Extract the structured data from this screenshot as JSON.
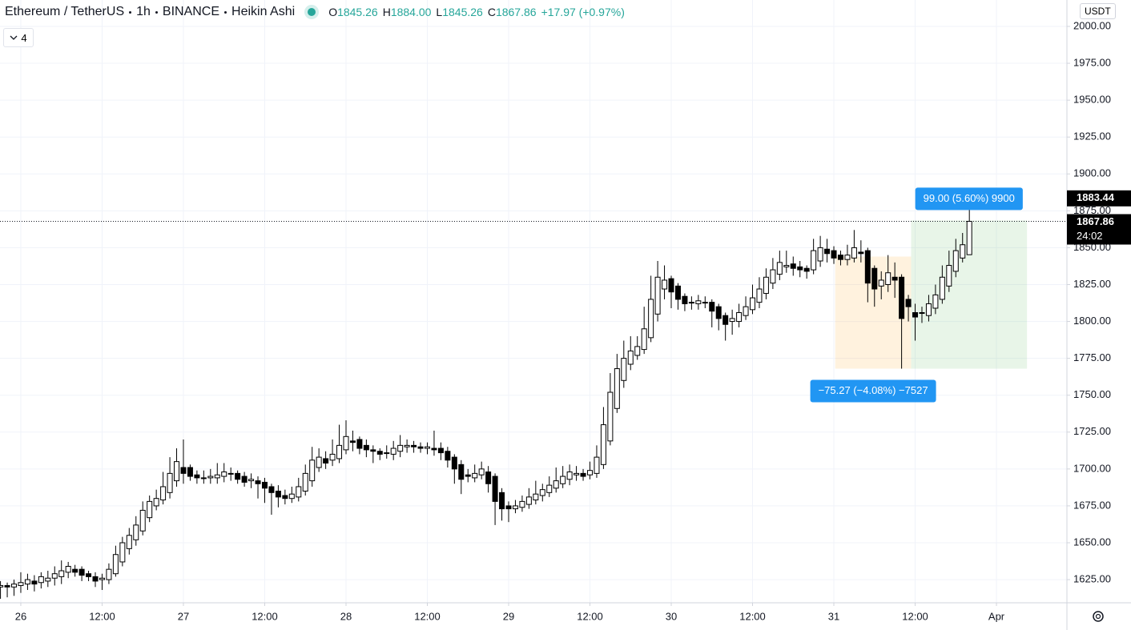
{
  "header": {
    "symbol": "Ethereum / TetherUS",
    "interval": "1h",
    "exchange": "BINANCE",
    "style": "Heikin Ashi",
    "ohlc": [
      {
        "label": "O",
        "value": "1845.26"
      },
      {
        "label": "H",
        "value": "1884.00"
      },
      {
        "label": "L",
        "value": "1845.26"
      },
      {
        "label": "C",
        "value": "1867.86"
      }
    ],
    "change": "+17.97 (+0.97%)",
    "indicators": "4"
  },
  "chart_data": {
    "type": "candlestick",
    "x": [
      -3,
      -2,
      -1,
      0,
      1,
      2,
      3,
      4,
      5,
      6,
      7,
      8,
      9,
      10,
      11,
      12,
      13,
      14,
      15,
      16,
      17,
      18,
      19,
      20,
      21,
      22,
      23,
      24,
      25,
      26,
      27,
      28,
      29,
      30,
      31,
      32,
      33,
      34,
      35,
      36,
      37,
      38,
      39,
      40,
      41,
      42,
      43,
      44,
      45,
      46,
      47,
      48,
      49,
      50,
      51,
      52,
      53,
      54,
      55,
      56,
      57,
      58,
      59,
      60,
      61,
      62,
      63,
      64,
      65,
      66,
      67,
      68,
      69,
      70,
      71,
      72,
      73,
      74,
      75,
      76,
      77,
      78,
      79,
      80,
      81,
      82,
      83,
      84,
      85,
      86,
      87,
      88,
      89,
      90,
      91,
      92,
      93,
      94,
      95,
      96,
      97,
      98,
      99,
      100,
      101,
      102,
      103,
      104,
      105,
      106,
      107,
      108,
      109,
      110,
      111,
      112,
      113,
      114,
      115,
      116,
      117,
      118,
      119,
      120,
      121,
      122,
      123,
      124,
      125,
      126,
      127,
      128,
      129,
      130,
      131,
      132,
      133,
      134,
      135,
      136,
      137,
      138,
      139,
      140
    ],
    "open": [
      1620,
      1621,
      1620,
      1621,
      1622,
      1624,
      1623,
      1624,
      1626,
      1627,
      1630,
      1632,
      1632,
      1629,
      1627,
      1625,
      1625,
      1629,
      1637,
      1646,
      1652,
      1658,
      1667,
      1675,
      1679,
      1684,
      1692,
      1701,
      1701,
      1696,
      1694,
      1694,
      1694,
      1695,
      1697,
      1697,
      1695,
      1692,
      1692,
      1691,
      1688,
      1685,
      1682,
      1680,
      1681,
      1685,
      1692,
      1701,
      1707,
      1706,
      1707,
      1713,
      1719,
      1720,
      1716,
      1713,
      1712,
      1711,
      1710,
      1712,
      1715,
      1716,
      1715,
      1714,
      1714,
      1714,
      1712,
      1708,
      1703,
      1696,
      1694,
      1696,
      1698,
      1695,
      1684,
      1675,
      1673,
      1674,
      1676,
      1679,
      1682,
      1684,
      1687,
      1690,
      1693,
      1696,
      1697,
      1696,
      1697,
      1703,
      1719,
      1741,
      1760,
      1771,
      1777,
      1781,
      1789,
      1805,
      1822,
      1829,
      1824,
      1817,
      1813,
      1812,
      1813,
      1813,
      1810,
      1804,
      1800,
      1800,
      1804,
      1808,
      1813,
      1819,
      1826,
      1832,
      1837,
      1839,
      1837,
      1836,
      1835,
      1841,
      1849,
      1848,
      1845,
      1842,
      1843,
      1847,
      1848,
      1836,
      1824,
      1825,
      1830,
      1830,
      1815,
      1806,
      1806,
      1804,
      1809,
      1815,
      1824,
      1834,
      1843,
      1845.26
    ],
    "high": [
      1624,
      1623,
      1625,
      1630,
      1629,
      1628,
      1630,
      1631,
      1634,
      1638,
      1637,
      1635,
      1634,
      1631,
      1630,
      1629,
      1636,
      1648,
      1654,
      1660,
      1668,
      1678,
      1682,
      1686,
      1698,
      1708,
      1714,
      1720,
      1703,
      1699,
      1699,
      1700,
      1704,
      1704,
      1701,
      1699,
      1698,
      1697,
      1695,
      1694,
      1690,
      1689,
      1686,
      1688,
      1694,
      1703,
      1715,
      1714,
      1712,
      1720,
      1730,
      1733,
      1726,
      1722,
      1720,
      1716,
      1714,
      1716,
      1719,
      1723,
      1720,
      1719,
      1718,
      1718,
      1726,
      1718,
      1715,
      1710,
      1706,
      1700,
      1703,
      1705,
      1702,
      1697,
      1687,
      1678,
      1679,
      1682,
      1687,
      1692,
      1690,
      1695,
      1701,
      1702,
      1703,
      1702,
      1700,
      1705,
      1716,
      1742,
      1765,
      1778,
      1787,
      1790,
      1790,
      1810,
      1831,
      1841,
      1838,
      1831,
      1826,
      1819,
      1817,
      1818,
      1817,
      1815,
      1812,
      1806,
      1808,
      1812,
      1817,
      1825,
      1830,
      1836,
      1843,
      1848,
      1848,
      1844,
      1841,
      1838,
      1856,
      1858,
      1856,
      1851,
      1848,
      1852,
      1862,
      1855,
      1850,
      1838,
      1834,
      1845,
      1840,
      1832,
      1818,
      1812,
      1810,
      1818,
      1825,
      1838,
      1848,
      1856,
      1860,
      1884
    ],
    "low": [
      1612,
      1613,
      1614,
      1616,
      1618,
      1617,
      1619,
      1620,
      1621,
      1622,
      1626,
      1627,
      1624,
      1624,
      1620,
      1618,
      1622,
      1627,
      1634,
      1642,
      1648,
      1655,
      1664,
      1672,
      1676,
      1680,
      1688,
      1690,
      1692,
      1690,
      1690,
      1690,
      1690,
      1691,
      1692,
      1690,
      1688,
      1687,
      1680,
      1677,
      1669,
      1674,
      1676,
      1677,
      1678,
      1682,
      1688,
      1698,
      1700,
      1702,
      1704,
      1710,
      1712,
      1710,
      1708,
      1704,
      1706,
      1707,
      1706,
      1708,
      1711,
      1711,
      1711,
      1710,
      1709,
      1706,
      1701,
      1690,
      1683,
      1691,
      1691,
      1693,
      1684,
      1662,
      1665,
      1664,
      1670,
      1671,
      1673,
      1676,
      1678,
      1681,
      1684,
      1687,
      1689,
      1692,
      1692,
      1693,
      1694,
      1700,
      1716,
      1738,
      1755,
      1767,
      1774,
      1778,
      1786,
      1800,
      1815,
      1809,
      1808,
      1807,
      1808,
      1808,
      1809,
      1796,
      1794,
      1787,
      1791,
      1796,
      1801,
      1805,
      1809,
      1815,
      1822,
      1828,
      1833,
      1831,
      1830,
      1829,
      1832,
      1837,
      1840,
      1839,
      1838,
      1838,
      1840,
      1840,
      1813,
      1810,
      1815,
      1820,
      1816,
      1768,
      1800,
      1787,
      1799,
      1800,
      1805,
      1812,
      1820,
      1830,
      1840,
      1845.26
    ],
    "close": [
      1621,
      1620,
      1622,
      1623,
      1625,
      1622,
      1627,
      1626,
      1629,
      1631,
      1634,
      1630,
      1628,
      1627,
      1624,
      1626,
      1632,
      1642,
      1650,
      1655,
      1662,
      1672,
      1678,
      1680,
      1688,
      1697,
      1705,
      1697,
      1695,
      1694,
      1694,
      1695,
      1696,
      1698,
      1697,
      1693,
      1691,
      1693,
      1690,
      1687,
      1684,
      1681,
      1680,
      1683,
      1688,
      1697,
      1706,
      1708,
      1704,
      1710,
      1716,
      1722,
      1718,
      1714,
      1713,
      1712,
      1710,
      1711,
      1714,
      1716,
      1716,
      1715,
      1714,
      1715,
      1713,
      1711,
      1706,
      1700,
      1693,
      1695,
      1697,
      1700,
      1690,
      1678,
      1673,
      1673,
      1675,
      1678,
      1681,
      1683,
      1686,
      1689,
      1692,
      1695,
      1698,
      1697,
      1695,
      1699,
      1708,
      1730,
      1752,
      1768,
      1775,
      1780,
      1783,
      1795,
      1815,
      1830,
      1828,
      1820,
      1815,
      1812,
      1813,
      1814,
      1813,
      1807,
      1802,
      1798,
      1802,
      1806,
      1810,
      1816,
      1822,
      1830,
      1835,
      1840,
      1838,
      1836,
      1835,
      1834,
      1848,
      1850,
      1846,
      1843,
      1842,
      1845,
      1850,
      1846,
      1826,
      1822,
      1828,
      1833,
      1828,
      1802,
      1810,
      1803,
      1806,
      1812,
      1818,
      1830,
      1838,
      1848,
      1852,
      1867.86
    ],
    "up_color": "#ffffff",
    "down_color": "#000000",
    "xlim": [
      -3.07,
      154.4
    ],
    "xticks": [
      {
        "value": 0,
        "label": "26"
      },
      {
        "value": 12,
        "label": "12:00"
      },
      {
        "value": 24,
        "label": "27"
      },
      {
        "value": 36,
        "label": "12:00"
      },
      {
        "value": 48,
        "label": "28"
      },
      {
        "value": 60,
        "label": "12:00"
      },
      {
        "value": 72,
        "label": "29"
      },
      {
        "value": 84,
        "label": "12:00"
      },
      {
        "value": 96,
        "label": "30"
      },
      {
        "value": 108,
        "label": "12:00"
      },
      {
        "value": 120,
        "label": "31"
      },
      {
        "value": 132,
        "label": "12:00"
      },
      {
        "value": 144,
        "label": "Apr"
      }
    ],
    "ylim": [
      1609.3,
      2017.9
    ],
    "yticks": [
      {
        "value": 1625,
        "label": "1625.00"
      },
      {
        "value": 1650,
        "label": "1650.00"
      },
      {
        "value": 1675,
        "label": "1675.00"
      },
      {
        "value": 1700,
        "label": "1700.00"
      },
      {
        "value": 1725,
        "label": "1725.00"
      },
      {
        "value": 1750,
        "label": "1750.00"
      },
      {
        "value": 1775,
        "label": "1775.00"
      },
      {
        "value": 1800,
        "label": "1800.00"
      },
      {
        "value": 1825,
        "label": "1825.00"
      },
      {
        "value": 1850,
        "label": "1850.00"
      },
      {
        "value": 1875,
        "label": "1875.00"
      },
      {
        "value": 1900,
        "label": "1900.00"
      },
      {
        "value": 1925,
        "label": "1925.00"
      },
      {
        "value": 1950,
        "label": "1950.00"
      },
      {
        "value": 1975,
        "label": "1975.00"
      },
      {
        "value": 2000,
        "label": "2000.00"
      }
    ],
    "grid": true,
    "currency": "USDT",
    "last_price": 1867.86,
    "countdown": "24:02",
    "marker_price": 1883.44,
    "ranges": [
      {
        "x": [
          120.2,
          131.4
        ],
        "y": [
          1768,
          1844
        ],
        "color": "rgba(255,152,0,0.13)",
        "label": "−75.27 (−4.08%) −7527",
        "label_side": "bottom"
      },
      {
        "x": [
          131.4,
          148.5
        ],
        "y": [
          1768,
          1868.5
        ],
        "color": "rgba(76,175,80,0.13)",
        "label": "99.00 (5.60%) 9900",
        "label_side": "top"
      }
    ],
    "label_color": "#2196f3"
  }
}
